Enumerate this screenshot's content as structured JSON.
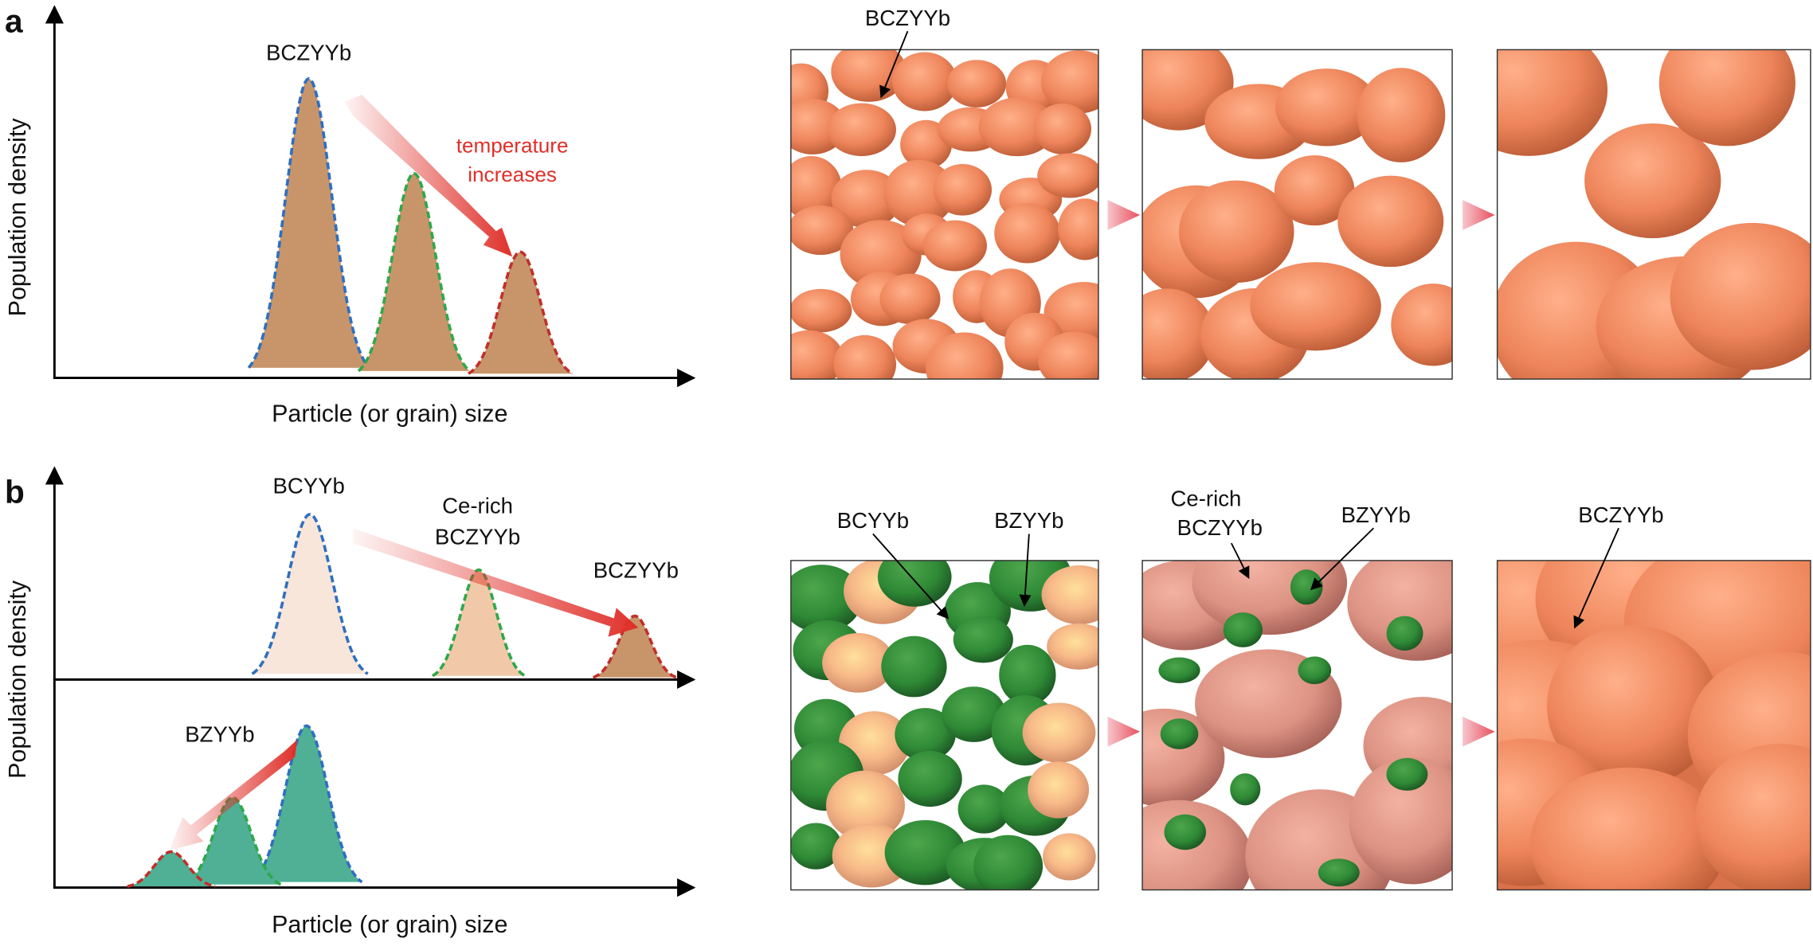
{
  "panel_a": {
    "label": "a",
    "y_axis_label": "Population density",
    "x_axis_label": "Particle (or grain) size",
    "peak_label": "BCZYYb",
    "arrow_label": [
      "temperature",
      "increases"
    ],
    "image_label": "BCZYYb"
  },
  "panel_b": {
    "label": "b",
    "y_axis_label": "Population density",
    "x_axis_label": "Particle (or grain) size",
    "top_peak_labels": {
      "initial": "BCYYb",
      "middle": [
        "Ce-rich",
        "BCZYYb"
      ],
      "final": "BCZYYb"
    },
    "bottom_peak_label": "BZYYb",
    "image_labels": {
      "initial": [
        "BCYYb",
        "BZYYb"
      ],
      "middle": [
        "Ce-rich",
        "BCZYYb",
        "BZYYb"
      ],
      "final": "BCZYYb"
    }
  }
}
